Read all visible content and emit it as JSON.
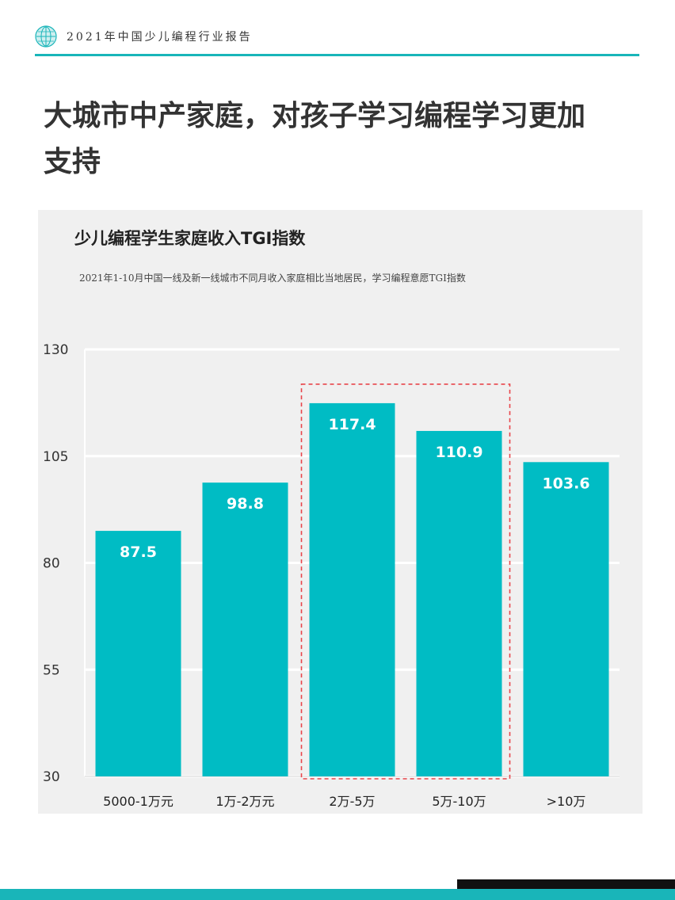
{
  "header": {
    "report_title": "2021年中国少儿编程行业报告",
    "icon": "globe-icon"
  },
  "page": {
    "title_line1": "大城市中产家庭，对孩子学习编程学习更加",
    "title_line2": "支持"
  },
  "colors": {
    "accent": "#19b5b9",
    "bar": "#00bcc4",
    "highlight_box": "#e8454a",
    "panel_bg": "#f0f0f0"
  },
  "chart_data": {
    "type": "bar",
    "title": "少儿编程学生家庭收入TGI指数",
    "subtitle": "2021年1-10月中国一线及新一线城市不同月收入家庭相比当地居民，学习编程意愿TGI指数",
    "categories": [
      "5000-1万元",
      "1万-2万元",
      "2万-5万",
      "5万-10万",
      ">10万"
    ],
    "values": [
      87.5,
      98.8,
      117.4,
      110.9,
      103.6
    ],
    "value_labels": [
      "87.5",
      "98.8",
      "117.4",
      "110.9",
      "103.6"
    ],
    "ylim": [
      30,
      130
    ],
    "yticks": [
      "30",
      "55",
      "80",
      "105",
      "130"
    ],
    "grid": true,
    "highlighted_categories": [
      "2万-5万",
      "5万-10万"
    ]
  }
}
